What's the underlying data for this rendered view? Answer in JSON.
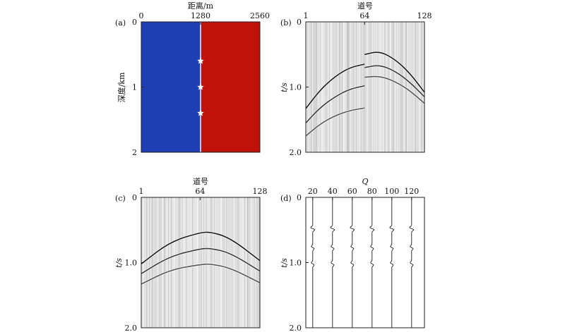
{
  "panels": {
    "a": {
      "tag": "(a)",
      "xlabel": "距离/m",
      "ylabel": "深度/km",
      "xticks": [
        "0",
        "1280",
        "2560"
      ],
      "yticks": [
        "0",
        "1",
        "2"
      ],
      "left_color": "#1f3fb4",
      "right_color": "#c0110b",
      "boundary_color": "#b8c4e8",
      "markers": [
        {
          "distance": 1280,
          "depth": 0.6
        },
        {
          "distance": 1280,
          "depth": 1.0
        },
        {
          "distance": 1280,
          "depth": 1.4
        }
      ]
    },
    "b": {
      "tag": "(b)",
      "xlabel": "道号",
      "ylabel": "t/s",
      "xticks": [
        "1",
        "64",
        "128"
      ],
      "yticks": [
        "0",
        "1.0",
        "2.0"
      ]
    },
    "c": {
      "tag": "(c)",
      "xlabel": "道号",
      "ylabel": "t/s",
      "xticks": [
        "1",
        "64",
        "128"
      ],
      "yticks": [
        "0",
        "1.0",
        "2.0"
      ]
    },
    "d": {
      "tag": "(d)",
      "xlabel": "Q",
      "ylabel": "t/s",
      "xticks": [
        "20",
        "40",
        "60",
        "80",
        "100",
        "120"
      ],
      "yticks": [
        "0",
        "1.0",
        "2.0"
      ]
    }
  },
  "chart_data": [
    {
      "type": "heatmap",
      "panel": "a",
      "xlabel": "距离/m",
      "ylabel": "深度/km",
      "xlim": [
        0,
        2560
      ],
      "ylim": [
        0,
        2
      ],
      "regions": [
        {
          "x_from": 0,
          "x_to": 1280,
          "color": "#1f3fb4"
        },
        {
          "x_from": 1280,
          "x_to": 2560,
          "color": "#c0110b"
        }
      ],
      "points": [
        {
          "x": 1280,
          "y": 0.6
        },
        {
          "x": 1280,
          "y": 1.0
        },
        {
          "x": 1280,
          "y": 1.4
        }
      ]
    },
    {
      "type": "line",
      "panel": "b",
      "xlabel": "道号",
      "ylabel": "t/s",
      "xlim": [
        1,
        128
      ],
      "ylim": [
        0,
        2.0
      ],
      "series": [
        {
          "x": [
            1,
            16,
            32,
            48,
            64
          ],
          "y": [
            1.33,
            1.05,
            0.84,
            0.7,
            0.65
          ]
        },
        {
          "x": [
            1,
            16,
            32,
            48,
            64
          ],
          "y": [
            1.55,
            1.32,
            1.15,
            1.03,
            0.98
          ]
        },
        {
          "x": [
            1,
            16,
            32,
            48,
            64
          ],
          "y": [
            1.75,
            1.57,
            1.44,
            1.36,
            1.32
          ]
        },
        {
          "x": [
            64,
            80,
            96,
            112,
            128
          ],
          "y": [
            0.5,
            0.45,
            0.57,
            0.78,
            1.08
          ]
        },
        {
          "x": [
            64,
            80,
            96,
            112,
            128
          ],
          "y": [
            0.7,
            0.66,
            0.75,
            0.92,
            1.15
          ]
        },
        {
          "x": [
            64,
            80,
            96,
            112,
            128
          ],
          "y": [
            0.85,
            0.83,
            0.91,
            1.05,
            1.25
          ]
        }
      ]
    },
    {
      "type": "line",
      "panel": "c",
      "xlabel": "道号",
      "ylabel": "t/s",
      "xlim": [
        1,
        128
      ],
      "ylim": [
        0,
        2.0
      ],
      "series": [
        {
          "x": [
            1,
            32,
            64,
            75,
            96,
            128
          ],
          "y": [
            1.02,
            0.68,
            0.54,
            0.53,
            0.62,
            0.97
          ]
        },
        {
          "x": [
            1,
            32,
            64,
            75,
            96,
            128
          ],
          "y": [
            1.17,
            0.9,
            0.79,
            0.78,
            0.85,
            1.13
          ]
        },
        {
          "x": [
            1,
            32,
            64,
            75,
            96,
            128
          ],
          "y": [
            1.33,
            1.11,
            1.03,
            1.02,
            1.08,
            1.31
          ]
        }
      ]
    },
    {
      "type": "line",
      "panel": "d",
      "xlabel": "Q",
      "ylabel": "t/s",
      "xlim": [
        13,
        133
      ],
      "ylim": [
        0,
        2.0
      ],
      "traces": [
        {
          "q": 20,
          "events": [
            0.48,
            0.77,
            1.02
          ]
        },
        {
          "q": 40,
          "events": [
            0.48,
            0.77,
            1.02
          ]
        },
        {
          "q": 60,
          "events": [
            0.48,
            0.77,
            1.02
          ]
        },
        {
          "q": 80,
          "events": [
            0.48,
            0.77,
            1.02
          ]
        },
        {
          "q": 100,
          "events": [
            0.48,
            0.77,
            1.02
          ]
        },
        {
          "q": 120,
          "events": [
            0.48,
            0.77,
            1.02
          ]
        }
      ]
    }
  ]
}
